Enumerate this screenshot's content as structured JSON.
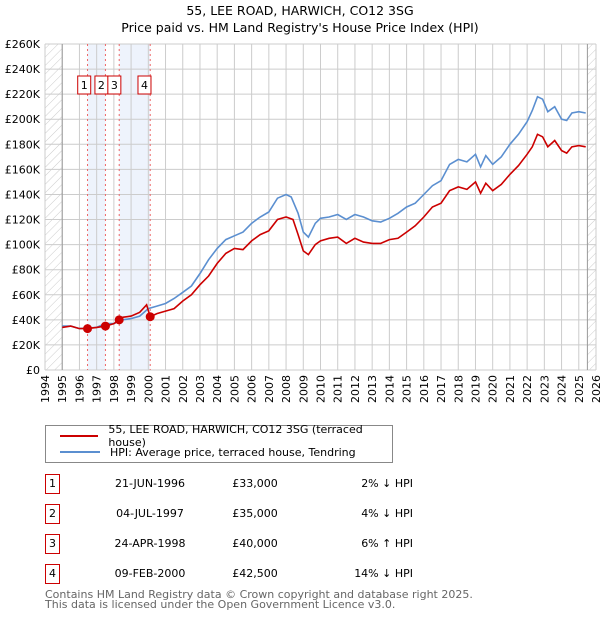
{
  "chart_data": {
    "type": "line",
    "title": "55, LEE ROAD, HARWICH, CO12 3SG",
    "subtitle": "Price paid vs. HM Land Registry's House Price Index (HPI)",
    "xlim": [
      1994,
      2026
    ],
    "ylim": [
      0,
      260000
    ],
    "x_ticks": [
      "1994",
      "1995",
      "1996",
      "1997",
      "1998",
      "1999",
      "2000",
      "2001",
      "2002",
      "2003",
      "2004",
      "2005",
      "2006",
      "2007",
      "2008",
      "2009",
      "2010",
      "2011",
      "2012",
      "2013",
      "2014",
      "2015",
      "2016",
      "2017",
      "2018",
      "2019",
      "2020",
      "2021",
      "2022",
      "2023",
      "2024",
      "2025",
      "2026"
    ],
    "y_ticks": [
      "£0",
      "£20K",
      "£40K",
      "£60K",
      "£80K",
      "£100K",
      "£120K",
      "£140K",
      "£160K",
      "£180K",
      "£200K",
      "£220K",
      "£240K",
      "£260K"
    ],
    "grid": true,
    "series": [
      {
        "name": "55, LEE ROAD, HARWICH, CO12 3SG (terraced house)",
        "color": "#cc0000",
        "x": [
          1995,
          1995.5,
          1996,
          1996.47,
          1997,
          1997.51,
          1998,
          1998.31,
          1998.5,
          1999,
          1999.5,
          1999.9,
          2000.11,
          2000.5,
          2001,
          2001.5,
          2002,
          2002.5,
          2003,
          2003.5,
          2004,
          2004.5,
          2005,
          2005.5,
          2006,
          2006.5,
          2007,
          2007.5,
          2008,
          2008.4,
          2008.7,
          2009,
          2009.3,
          2009.7,
          2010,
          2010.5,
          2011,
          2011.5,
          2012,
          2012.5,
          2013,
          2013.5,
          2014,
          2014.5,
          2015,
          2015.5,
          2016,
          2016.5,
          2017,
          2017.5,
          2018,
          2018.5,
          2019,
          2019.3,
          2019.6,
          2020,
          2020.5,
          2021,
          2021.5,
          2022,
          2022.3,
          2022.6,
          2022.9,
          2023.2,
          2023.6,
          2024,
          2024.3,
          2024.6,
          2025,
          2025.4
        ],
        "y": [
          34,
          35,
          33,
          33,
          34,
          35,
          37,
          40,
          42,
          43,
          46,
          52,
          42.5,
          45,
          47,
          49,
          55,
          60,
          68,
          75,
          85,
          93,
          97,
          96,
          103,
          108,
          111,
          120,
          122,
          120,
          108,
          95,
          92,
          100,
          103,
          105,
          106,
          101,
          105,
          102,
          101,
          101,
          104,
          105,
          110,
          115,
          122,
          130,
          133,
          143,
          146,
          144,
          150,
          141,
          149,
          143,
          148,
          156,
          163,
          172,
          178,
          188,
          186,
          178,
          183,
          175,
          173,
          178,
          179,
          178
        ]
      },
      {
        "name": "HPI: Average price, terraced house, Tendring",
        "color": "#5b8fd0",
        "x": [
          1995,
          1995.5,
          1996,
          1996.5,
          1997,
          1997.5,
          1998,
          1998.5,
          1999,
          1999.5,
          2000,
          2000.5,
          2001,
          2001.5,
          2002,
          2002.5,
          2003,
          2003.5,
          2004,
          2004.5,
          2005,
          2005.5,
          2006,
          2006.5,
          2007,
          2007.5,
          2008,
          2008.3,
          2008.7,
          2009,
          2009.3,
          2009.7,
          2010,
          2010.5,
          2011,
          2011.5,
          2012,
          2012.5,
          2013,
          2013.5,
          2014,
          2014.5,
          2015,
          2015.5,
          2016,
          2016.5,
          2017,
          2017.5,
          2018,
          2018.5,
          2019,
          2019.3,
          2019.6,
          2020,
          2020.5,
          2021,
          2021.5,
          2022,
          2022.3,
          2022.6,
          2022.9,
          2023.2,
          2023.6,
          2024,
          2024.3,
          2024.6,
          2025,
          2025.4
        ],
        "y": [
          35,
          35,
          33,
          33.5,
          34,
          37,
          37,
          40,
          41,
          43,
          49,
          51,
          53,
          57,
          62,
          67,
          77,
          88,
          97,
          104,
          107,
          110,
          117,
          122,
          126,
          137,
          140,
          138,
          125,
          110,
          106,
          117,
          121,
          122,
          124,
          120,
          124,
          122,
          119,
          118,
          121,
          125,
          130,
          133,
          140,
          147,
          151,
          164,
          168,
          166,
          172,
          162,
          171,
          164,
          170,
          180,
          188,
          198,
          207,
          218,
          216,
          206,
          210,
          200,
          199,
          205,
          206,
          205
        ]
      }
    ],
    "y_unit": "thousands GBP",
    "sales": [
      {
        "label": "1",
        "x": 1996.47,
        "y": 33
      },
      {
        "label": "2",
        "x": 1997.51,
        "y": 35
      },
      {
        "label": "3",
        "x": 1998.31,
        "y": 40
      },
      {
        "label": "4",
        "x": 2000.11,
        "y": 42.5
      }
    ],
    "legend_placement": "bottom"
  },
  "transactions": [
    {
      "num": "1",
      "date": "21-JUN-1996",
      "price": "£33,000",
      "hpi": "2% ↓ HPI"
    },
    {
      "num": "2",
      "date": "04-JUL-1997",
      "price": "£35,000",
      "hpi": "4% ↓ HPI"
    },
    {
      "num": "3",
      "date": "24-APR-1998",
      "price": "£40,000",
      "hpi": "6% ↑ HPI"
    },
    {
      "num": "4",
      "date": "09-FEB-2000",
      "price": "£42,500",
      "hpi": "14% ↓ HPI"
    }
  ],
  "footer": {
    "line1": "Contains HM Land Registry data © Crown copyright and database right 2025.",
    "line2": "This data is licensed under the Open Government Licence v3.0."
  }
}
